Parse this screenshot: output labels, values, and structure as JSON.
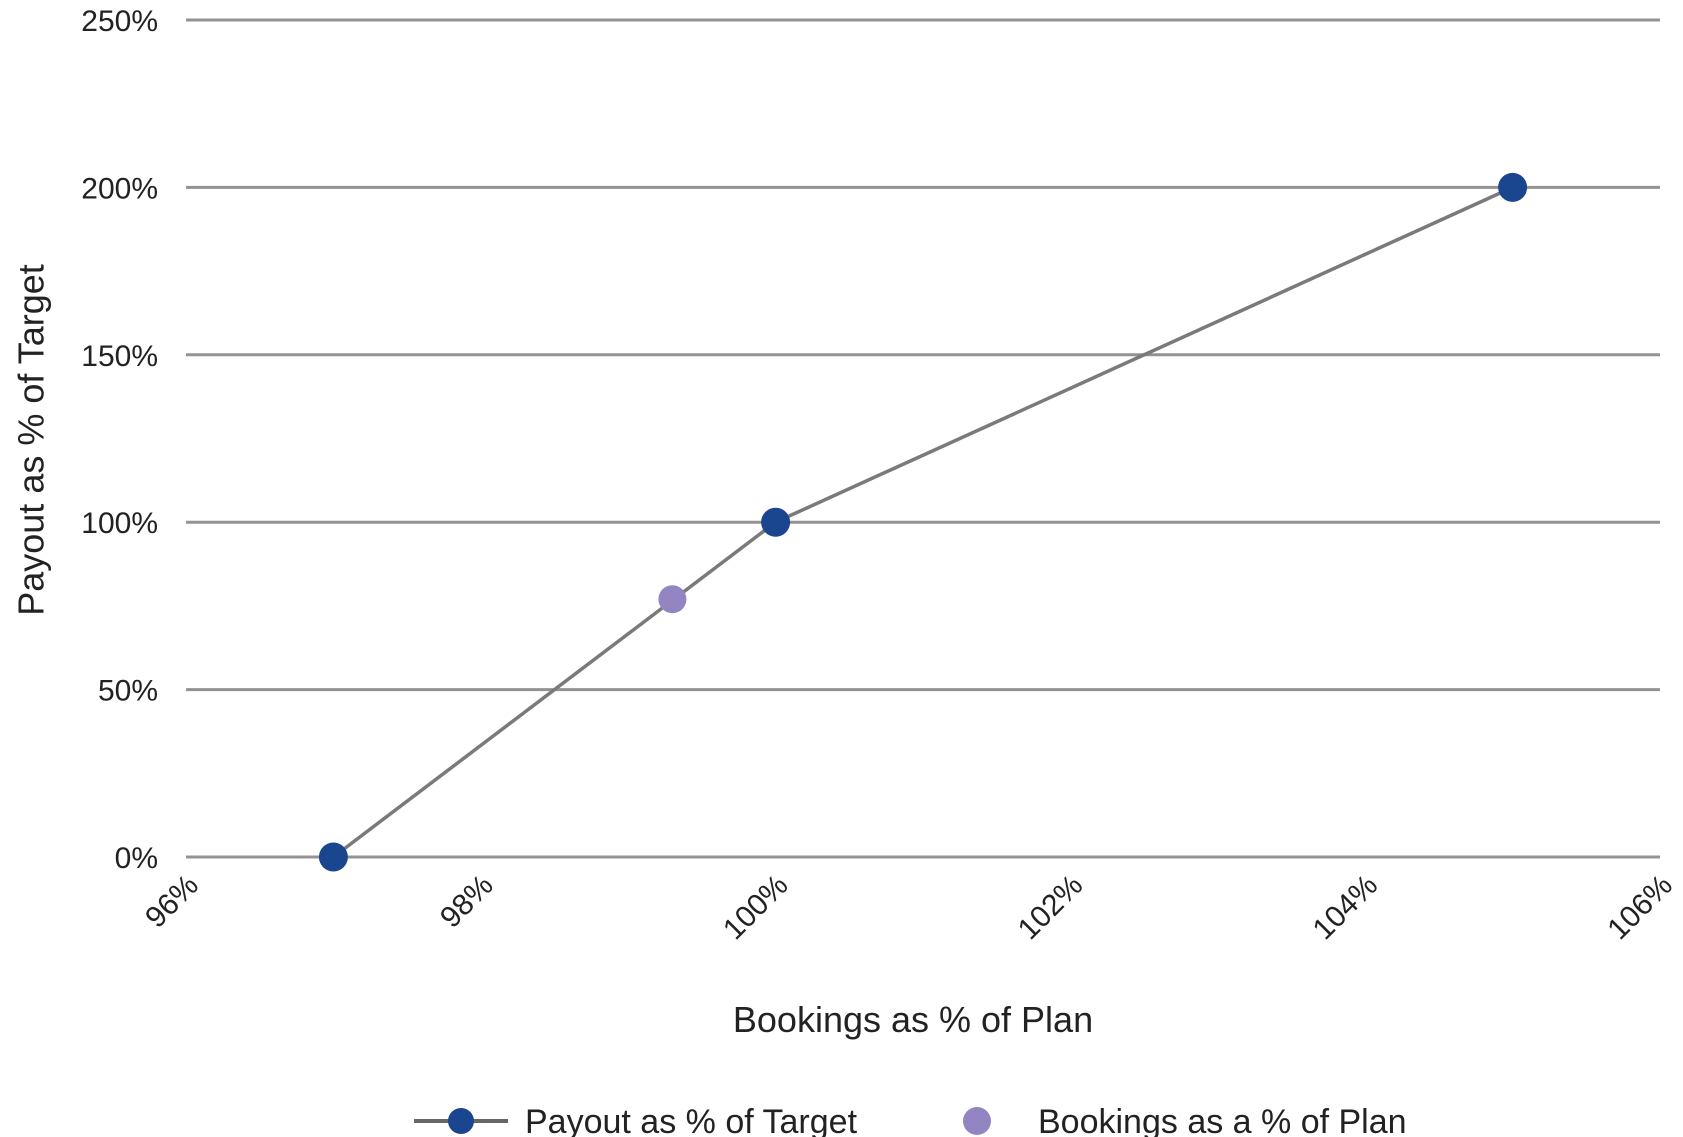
{
  "chart_data": {
    "type": "line",
    "title": "",
    "xlabel": "Bookings as % of Plan",
    "ylabel": "Payout as % of Target",
    "xlim": [
      96,
      106
    ],
    "ylim": [
      0,
      250
    ],
    "x_ticks": [
      "96%",
      "98%",
      "100%",
      "102%",
      "104%",
      "106%"
    ],
    "y_ticks": [
      "0%",
      "50%",
      "100%",
      "150%",
      "200%",
      "250%"
    ],
    "grid": "horizontal",
    "legend_position": "bottom",
    "series": [
      {
        "name": "Payout as % of Target",
        "kind": "line-with-markers",
        "color": "#1A468F",
        "line_color": "#7A7A7A",
        "points": [
          {
            "x": 97.0,
            "y": 0
          },
          {
            "x": 100.0,
            "y": 100
          },
          {
            "x": 105.0,
            "y": 200
          }
        ]
      },
      {
        "name": "Bookings as a % of Plan",
        "kind": "marker",
        "color": "#9285C2",
        "points": [
          {
            "x": 99.3,
            "y": 77
          }
        ]
      }
    ]
  },
  "colors": {
    "gridline": "#939393",
    "series_line": "#7A7A7A",
    "payout_marker": "#1A468F",
    "bookings_marker": "#9285C2"
  }
}
